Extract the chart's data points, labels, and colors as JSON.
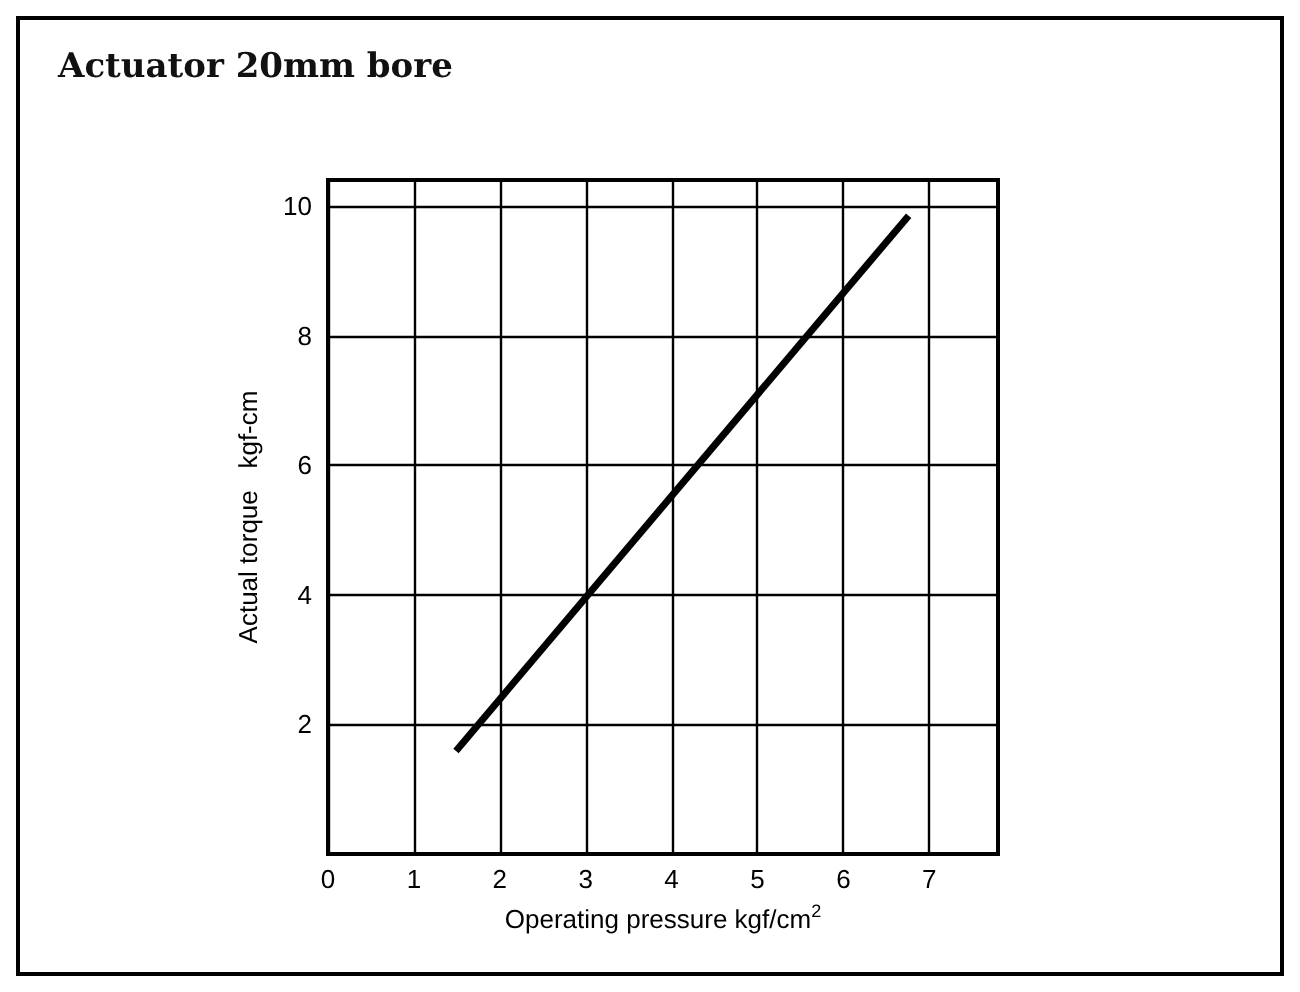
{
  "chart_data": {
    "type": "line",
    "title": "Actuator 20mm bore",
    "xlabel": "Operating pressure kgf/cm$^{2}$",
    "ylabel": "Actual torque   kgf-cm",
    "x": [
      1.49,
      6.76
    ],
    "series": [
      {
        "color": "#000000",
        "values": [
          1.59,
          9.85
        ]
      }
    ],
    "xlim": [
      0,
      7.8
    ],
    "xticks": [
      0,
      1,
      2,
      3,
      4,
      5,
      6,
      7
    ],
    "ylim": [
      0,
      10.4
    ],
    "yticks": [
      2,
      4,
      6,
      8,
      10
    ],
    "grid": true,
    "marker": "none",
    "line_style": "solid"
  }
}
